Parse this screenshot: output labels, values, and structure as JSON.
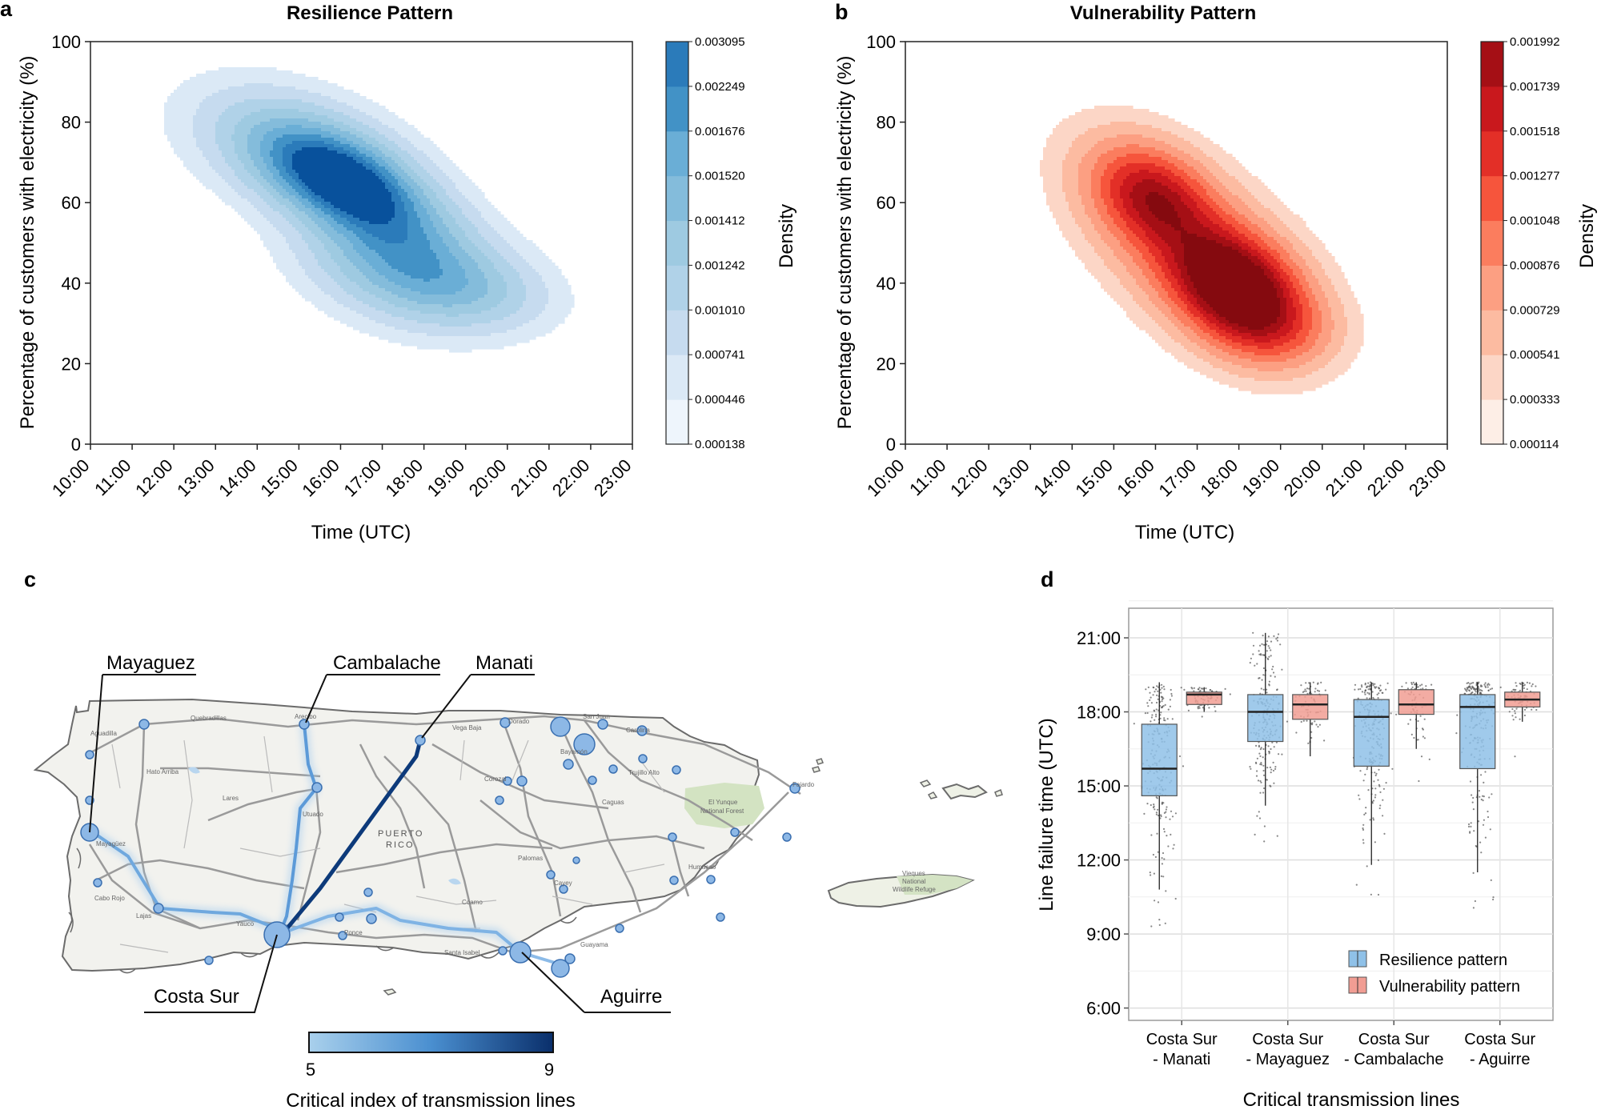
{
  "panels": {
    "a": {
      "letter": "a",
      "title": "Resilience Pattern",
      "xlabel": "Time (UTC)",
      "ylabel": "Percentage of customers with electricity (%)",
      "colorbar_label": "Density"
    },
    "b": {
      "letter": "b",
      "title": "Vulnerability Pattern",
      "xlabel": "Time (UTC)",
      "ylabel": "Percentage of customers with electricity (%)",
      "colorbar_label": "Density"
    },
    "c": {
      "letter": "c",
      "stations": [
        "Mayaguez",
        "Cambalache",
        "Manati",
        "Costa Sur",
        "Aguirre"
      ],
      "colorbar_label": "Critical index of transmission lines",
      "colorbar_min": "5",
      "colorbar_max": "9",
      "map_texts": {
        "puerto": "PUERTO",
        "rico": "RICO",
        "yunque": "El Yunque",
        "yunque2": "National Forest",
        "vieques": "Vieques",
        "vieques2": "National",
        "vieques3": "Wildlife Refuge",
        "san_juan": "San Juan",
        "carolina": "Carolina",
        "bayamon": "Bayamón",
        "aguadilla": "Aguadilla",
        "quebradillas": "Quebradillas",
        "arecibo": "Arecibo",
        "vega_baja": "Vega Baja",
        "dorado": "Dorado",
        "hatillo": "Hato Arriba",
        "lares": "Lares",
        "utuado": "Utuado",
        "corozal": "Corozal",
        "trujillo": "Trujillo Alto",
        "fajardo": "Fajardo",
        "mayaguez": "Mayagüez",
        "cabo_rojo": "Cabo Rojo",
        "lajas": "Lajas",
        "yauco": "Yauco",
        "ponce": "Ponce",
        "coamo": "Coamo",
        "cayey": "Cayey",
        "santa_isabel": "Santa Isabel",
        "guayama": "Guayama",
        "humacao": "Humacao",
        "palomas": "Palomas",
        "caguas": "Caguas"
      }
    },
    "d": {
      "letter": "d",
      "xlabel": "Critical transmission lines",
      "ylabel": "Line failure time (UTC)",
      "legend": [
        "Resilience pattern",
        "Vulnerability pattern"
      ]
    }
  },
  "chart_data": [
    {
      "type": "heatmap",
      "panel": "a",
      "title": "Resilience Pattern",
      "xlabel": "Time (UTC)",
      "ylabel": "Percentage of customers with electricity (%)",
      "x_ticks": [
        "10:00",
        "11:00",
        "12:00",
        "13:00",
        "14:00",
        "15:00",
        "16:00",
        "17:00",
        "18:00",
        "19:00",
        "20:00",
        "21:00",
        "22:00",
        "23:00"
      ],
      "x_range": [
        10,
        23
      ],
      "y_ticks": [
        0,
        20,
        40,
        60,
        80,
        100
      ],
      "ylim": [
        0,
        100
      ],
      "colormap": "Blues",
      "colorbar_levels": [
        "0.000138",
        "0.000446",
        "0.000741",
        "0.001010",
        "0.001242",
        "0.001412",
        "0.001520",
        "0.001676",
        "0.002249",
        "0.003095"
      ],
      "level_colors": [
        "#eef5fc",
        "#dbe9f6",
        "#c6dbef",
        "#b0d2e8",
        "#9ecae1",
        "#84bcdb",
        "#6aaed6",
        "#4292c6",
        "#2b7bba",
        "#08519c"
      ],
      "density_components": [
        {
          "mx": 16.1,
          "my": 65,
          "sx": 1.3,
          "sy": 9,
          "rho": -0.55,
          "w": 1.0
        },
        {
          "mx": 17.6,
          "my": 45,
          "sx": 1.4,
          "sy": 9,
          "rho": -0.3,
          "w": 0.55
        },
        {
          "mx": 15.0,
          "my": 73,
          "sx": 1.6,
          "sy": 10,
          "rho": -0.4,
          "w": 0.25
        },
        {
          "mx": 19.2,
          "my": 38,
          "sx": 1.2,
          "sy": 6,
          "rho": -0.2,
          "w": 0.18
        }
      ]
    },
    {
      "type": "heatmap",
      "panel": "b",
      "title": "Vulnerability Pattern",
      "xlabel": "Time (UTC)",
      "ylabel": "Percentage of customers with electricity (%)",
      "x_ticks": [
        "10:00",
        "11:00",
        "12:00",
        "13:00",
        "14:00",
        "15:00",
        "16:00",
        "17:00",
        "18:00",
        "19:00",
        "20:00",
        "21:00",
        "22:00",
        "23:00"
      ],
      "x_range": [
        10,
        23
      ],
      "y_ticks": [
        0,
        20,
        40,
        60,
        80,
        100
      ],
      "ylim": [
        0,
        100
      ],
      "colormap": "Reds",
      "colorbar_levels": [
        "0.000114",
        "0.000333",
        "0.000541",
        "0.000729",
        "0.000876",
        "0.001048",
        "0.001277",
        "0.001518",
        "0.001739",
        "0.001992"
      ],
      "level_colors": [
        "#fdeee6",
        "#fcd6c6",
        "#fcbba1",
        "#fc9f82",
        "#fb7d5e",
        "#f6553c",
        "#e32f27",
        "#c9181d",
        "#a50f15",
        "#850a0f"
      ],
      "density_components": [
        {
          "mx": 18.0,
          "my": 38,
          "sx": 1.0,
          "sy": 9,
          "rho": -0.3,
          "w": 1.0
        },
        {
          "mx": 15.9,
          "my": 62,
          "sx": 0.9,
          "sy": 8,
          "rho": -0.3,
          "w": 0.55
        },
        {
          "mx": 16.8,
          "my": 50,
          "sx": 1.5,
          "sy": 14,
          "rho": -0.55,
          "w": 0.45
        },
        {
          "mx": 19.0,
          "my": 28,
          "sx": 0.9,
          "sy": 6,
          "rho": 0.0,
          "w": 0.18
        }
      ]
    },
    {
      "type": "box",
      "panel": "d",
      "xlabel": "Critical transmission lines",
      "ylabel": "Line failure time (UTC)",
      "y_ticks": [
        "6:00",
        "9:00",
        "12:00",
        "15:00",
        "18:00",
        "21:00"
      ],
      "ylim_hours": [
        5.5,
        22.2
      ],
      "categories": [
        "Costa Sur\n- Manati",
        "Costa Sur\n- Mayaguez",
        "Costa Sur\n- Cambalache",
        "Costa Sur\n- Aguirre"
      ],
      "category_lines": [
        [
          "Costa Sur",
          "- Manati"
        ],
        [
          "Costa Sur",
          "- Mayaguez"
        ],
        [
          "Costa Sur",
          "- Cambalache"
        ],
        [
          "Costa Sur",
          "- Aguirre"
        ]
      ],
      "series": [
        {
          "name": "Resilience pattern",
          "color": "#8fc1e8",
          "boxes": [
            {
              "q1": 14.6,
              "median": 15.7,
              "q3": 17.5,
              "whislo": 10.8,
              "whishi": 19.2
            },
            {
              "q1": 16.8,
              "median": 18.0,
              "q3": 18.7,
              "whislo": 14.2,
              "whishi": 21.2
            },
            {
              "q1": 15.8,
              "median": 17.8,
              "q3": 18.5,
              "whislo": 11.8,
              "whishi": 19.2
            },
            {
              "q1": 15.7,
              "median": 18.2,
              "q3": 18.7,
              "whislo": 11.5,
              "whishi": 19.2
            }
          ]
        },
        {
          "name": "Vulnerability pattern",
          "color": "#f19d93",
          "boxes": [
            {
              "q1": 18.3,
              "median": 18.7,
              "q3": 18.8,
              "whislo": 18.0,
              "whishi": 19.0
            },
            {
              "q1": 17.7,
              "median": 18.3,
              "q3": 18.7,
              "whislo": 16.2,
              "whishi": 19.2
            },
            {
              "q1": 17.9,
              "median": 18.3,
              "q3": 18.9,
              "whislo": 16.5,
              "whishi": 19.2
            },
            {
              "q1": 18.2,
              "median": 18.5,
              "q3": 18.8,
              "whislo": 17.6,
              "whishi": 19.2
            }
          ]
        }
      ]
    }
  ]
}
